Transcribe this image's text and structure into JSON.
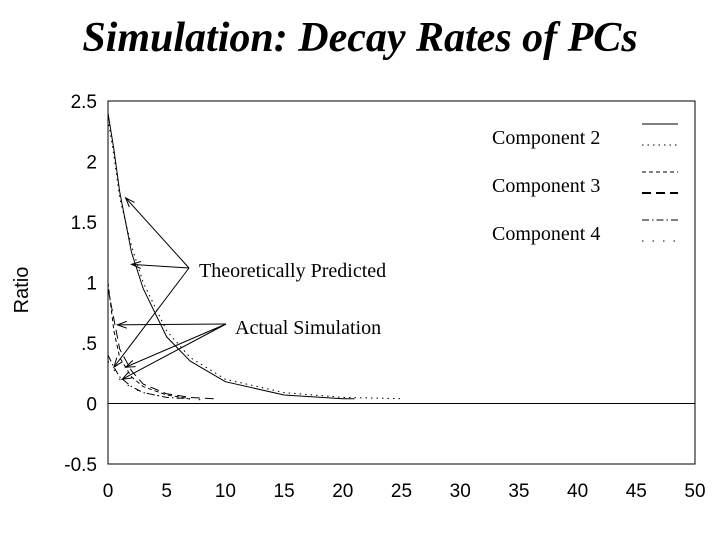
{
  "chart_data": {
    "type": "line",
    "title": "Simulation: Decay Rates of PCs",
    "xlabel": "",
    "ylabel": "Ratio",
    "xlim": [
      0,
      50
    ],
    "ylim": [
      -0.5,
      2.5
    ],
    "x_ticks": [
      "0",
      "5",
      "10",
      "15",
      "20",
      "25",
      "30",
      "35",
      "40",
      "45",
      "50"
    ],
    "y_ticks": [
      {
        "value": 2.5,
        "label": "2.5"
      },
      {
        "value": 2,
        "label": "2"
      },
      {
        "value": 1.5,
        "label": "1.5"
      },
      {
        "value": 1,
        "label": "1"
      },
      {
        "value": 0.5,
        "label": ".5"
      },
      {
        "value": 0,
        "label": "0"
      },
      {
        "value": -0.5,
        "label": "-0.5"
      }
    ],
    "grid": false,
    "legend_position": "top-right",
    "legend": [
      "Component 2",
      "Component 3",
      "Component 4"
    ],
    "series": [
      {
        "style": "solid",
        "x": [
          0,
          0.5,
          1,
          2,
          3,
          5,
          7,
          10,
          15,
          20,
          21
        ],
        "y": [
          2.4,
          2.1,
          1.75,
          1.25,
          0.95,
          0.55,
          0.35,
          0.18,
          0.07,
          0.04,
          0.04
        ]
      },
      {
        "style": "dotted",
        "x": [
          0,
          0.5,
          1,
          2,
          3,
          5,
          7,
          10,
          15,
          20,
          25
        ],
        "y": [
          2.35,
          2.05,
          1.7,
          1.3,
          1.0,
          0.6,
          0.38,
          0.2,
          0.09,
          0.05,
          0.04
        ]
      },
      {
        "style": "dashed-short",
        "x": [
          0,
          0.5,
          1,
          2,
          3,
          5,
          7
        ],
        "y": [
          1.0,
          0.6,
          0.38,
          0.22,
          0.14,
          0.07,
          0.04
        ]
      },
      {
        "style": "dashed-long",
        "x": [
          0,
          1,
          2,
          3,
          5,
          7,
          9
        ],
        "y": [
          0.95,
          0.45,
          0.27,
          0.16,
          0.08,
          0.05,
          0.04
        ]
      },
      {
        "style": "dashdot",
        "x": [
          0,
          0.5,
          1,
          2,
          3,
          5,
          7
        ],
        "y": [
          0.4,
          0.3,
          0.22,
          0.14,
          0.09,
          0.05,
          0.04
        ]
      },
      {
        "style": "sparse-dot",
        "x": [
          0,
          0.5,
          1,
          2,
          3,
          5,
          8
        ],
        "y": [
          0.35,
          0.28,
          0.2,
          0.13,
          0.09,
          0.05,
          0.03
        ]
      }
    ],
    "annotations": [
      {
        "text": "Theoretically Predicted",
        "targets": [
          [
            1.5,
            1.7
          ],
          [
            2,
            1.15
          ],
          [
            0.5,
            0.3
          ]
        ]
      },
      {
        "text": "Actual Simulation",
        "targets": [
          [
            0.8,
            0.65
          ],
          [
            1.5,
            0.3
          ],
          [
            1.2,
            0.2
          ]
        ]
      }
    ]
  }
}
